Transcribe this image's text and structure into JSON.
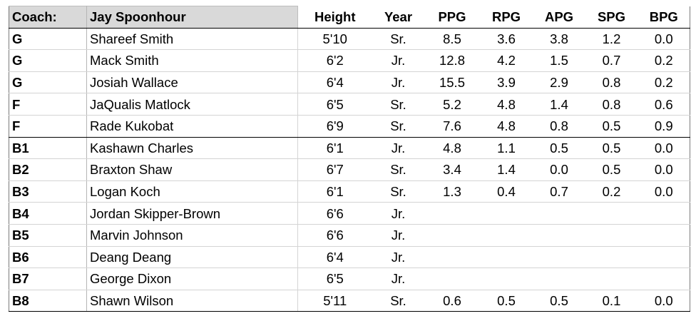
{
  "header": {
    "coach_label": "Coach:",
    "coach_name": "Jay Spoonhour",
    "columns": [
      "Height",
      "Year",
      "PPG",
      "RPG",
      "APG",
      "SPG",
      "BPG"
    ]
  },
  "players": [
    {
      "pos": "G",
      "name": "Shareef Smith",
      "height": "5'10",
      "year": "Sr.",
      "ppg": "8.5",
      "rpg": "3.6",
      "apg": "3.8",
      "spg": "1.2",
      "bpg": "0.0"
    },
    {
      "pos": "G",
      "name": "Mack Smith",
      "height": "6'2",
      "year": "Jr.",
      "ppg": "12.8",
      "rpg": "4.2",
      "apg": "1.5",
      "spg": "0.7",
      "bpg": "0.2"
    },
    {
      "pos": "G",
      "name": "Josiah Wallace",
      "height": "6'4",
      "year": "Jr.",
      "ppg": "15.5",
      "rpg": "3.9",
      "apg": "2.9",
      "spg": "0.8",
      "bpg": "0.2"
    },
    {
      "pos": "F",
      "name": "JaQualis Matlock",
      "height": "6'5",
      "year": "Sr.",
      "ppg": "5.2",
      "rpg": "4.8",
      "apg": "1.4",
      "spg": "0.8",
      "bpg": "0.6"
    },
    {
      "pos": "F",
      "name": "Rade Kukobat",
      "height": "6'9",
      "year": "Sr.",
      "ppg": "7.6",
      "rpg": "4.8",
      "apg": "0.8",
      "spg": "0.5",
      "bpg": "0.9"
    },
    {
      "pos": "B1",
      "name": "Kashawn Charles",
      "height": "6'1",
      "year": "Jr.",
      "ppg": "4.8",
      "rpg": "1.1",
      "apg": "0.5",
      "spg": "0.5",
      "bpg": "0.0"
    },
    {
      "pos": "B2",
      "name": "Braxton Shaw",
      "height": "6'7",
      "year": "Sr.",
      "ppg": "3.4",
      "rpg": "1.4",
      "apg": "0.0",
      "spg": "0.5",
      "bpg": "0.0"
    },
    {
      "pos": "B3",
      "name": "Logan Koch",
      "height": "6'1",
      "year": "Sr.",
      "ppg": "1.3",
      "rpg": "0.4",
      "apg": "0.7",
      "spg": "0.2",
      "bpg": "0.0"
    },
    {
      "pos": "B4",
      "name": "Jordan Skipper-Brown",
      "height": "6'6",
      "year": "Jr.",
      "ppg": "",
      "rpg": "",
      "apg": "",
      "spg": "",
      "bpg": ""
    },
    {
      "pos": "B5",
      "name": "Marvin Johnson",
      "height": "6'6",
      "year": "Jr.",
      "ppg": "",
      "rpg": "",
      "apg": "",
      "spg": "",
      "bpg": ""
    },
    {
      "pos": "B6",
      "name": "Deang Deang",
      "height": "6'4",
      "year": "Jr.",
      "ppg": "",
      "rpg": "",
      "apg": "",
      "spg": "",
      "bpg": ""
    },
    {
      "pos": "B7",
      "name": "George Dixon",
      "height": "6'5",
      "year": "Jr.",
      "ppg": "",
      "rpg": "",
      "apg": "",
      "spg": "",
      "bpg": ""
    },
    {
      "pos": "B8",
      "name": "Shawn Wilson",
      "height": "5'11",
      "year": "Sr.",
      "ppg": "0.6",
      "rpg": "0.5",
      "apg": "0.5",
      "spg": "0.1",
      "bpg": "0.0"
    }
  ]
}
